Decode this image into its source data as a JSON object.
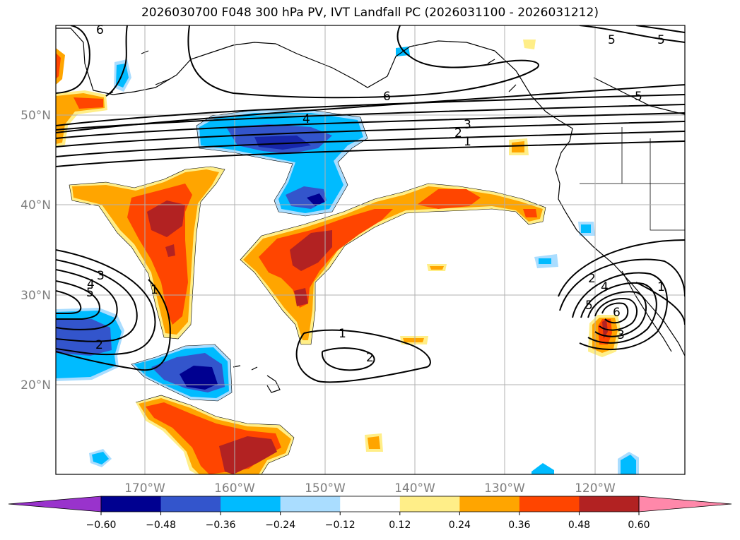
{
  "title": "2026030700 F048 300 hPa PV, IVT Landfall PC (2026031100 - 2026031212)",
  "latitude_labels": [
    "50°N",
    "40°N",
    "30°N",
    "20°N"
  ],
  "longitude_labels": [
    "170°W",
    "160°W",
    "150°W",
    "140°W",
    "130°W",
    "120°W"
  ],
  "colorbar": {
    "tick_labels": [
      "−0.60",
      "−0.48",
      "−0.36",
      "−0.24",
      "−0.12",
      "0.12",
      "0.24",
      "0.36",
      "0.48",
      "0.60"
    ],
    "colors": {
      "under": "#9933cc",
      "bins": [
        "#000090",
        "#3355cc",
        "#00bbff",
        "#aaddff",
        "#ffffff",
        "#ffee88",
        "#ffa500",
        "#ff4500",
        "#b22222"
      ],
      "over": "#ff88aa"
    }
  },
  "contour_labels": [
    {
      "text": "6"
    },
    {
      "text": "5"
    },
    {
      "text": "6"
    },
    {
      "text": "5"
    },
    {
      "text": "5"
    },
    {
      "text": "4"
    },
    {
      "text": "3"
    },
    {
      "text": "2"
    },
    {
      "text": "1"
    },
    {
      "text": "3"
    },
    {
      "text": "4"
    },
    {
      "text": "5"
    },
    {
      "text": "1"
    },
    {
      "text": "2"
    },
    {
      "text": "1"
    },
    {
      "text": "2"
    },
    {
      "text": "2"
    },
    {
      "text": "4"
    },
    {
      "text": "5"
    },
    {
      "text": "6"
    },
    {
      "text": "3"
    },
    {
      "text": "1"
    }
  ]
}
